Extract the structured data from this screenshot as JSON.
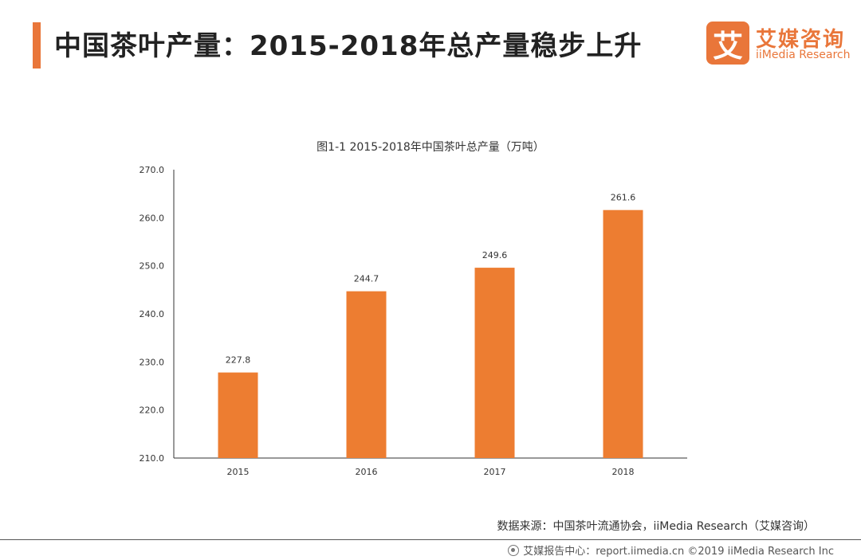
{
  "header": {
    "title": "中国茶叶产量：2015-2018年总产量稳步上升"
  },
  "logo": {
    "mark": "艾",
    "name_cn": "艾媒咨询",
    "name_en": "iiMedia Research"
  },
  "source": "数据来源：中国茶叶流通协会，iiMedia Research（艾媒咨询）",
  "footer": {
    "text": "艾媒报告中心：report.iimedia.cn ©2019 iiMedia Research Inc",
    "icon": "globe-icon"
  },
  "colors": {
    "bar": "#ed7d31",
    "accent": "#e9763a"
  },
  "chart_data": {
    "type": "bar",
    "title": "图1-1 2015-2018年中国茶叶总产量（万吨）",
    "categories": [
      "2015",
      "2016",
      "2017",
      "2018"
    ],
    "values": [
      227.8,
      244.7,
      249.6,
      261.6
    ],
    "data_labels": [
      "227.8",
      "244.7",
      "249.6",
      "261.6"
    ],
    "ylim": [
      210,
      270
    ],
    "yticks": [
      "210.0",
      "220.0",
      "230.0",
      "240.0",
      "250.0",
      "260.0",
      "270.0"
    ],
    "xlabel": "",
    "ylabel": "",
    "grid": false,
    "legend": "none"
  }
}
